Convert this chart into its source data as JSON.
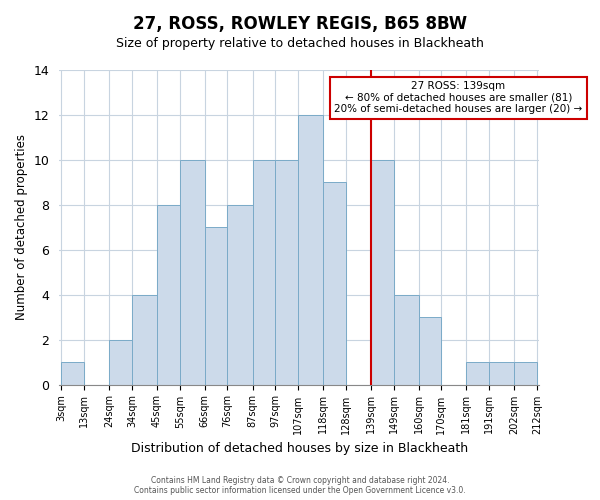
{
  "title": "27, ROSS, ROWLEY REGIS, B65 8BW",
  "subtitle": "Size of property relative to detached houses in Blackheath",
  "xlabel": "Distribution of detached houses by size in Blackheath",
  "ylabel": "Number of detached properties",
  "bin_edges": [
    3,
    13,
    24,
    34,
    45,
    55,
    66,
    76,
    87,
    97,
    107,
    118,
    128,
    139,
    149,
    160,
    170,
    181,
    191,
    202,
    212
  ],
  "bin_labels": [
    "3sqm",
    "13sqm",
    "24sqm",
    "34sqm",
    "45sqm",
    "55sqm",
    "66sqm",
    "76sqm",
    "87sqm",
    "97sqm",
    "107sqm",
    "118sqm",
    "128sqm",
    "139sqm",
    "149sqm",
    "160sqm",
    "170sqm",
    "181sqm",
    "191sqm",
    "202sqm",
    "212sqm"
  ],
  "counts": [
    1,
    0,
    2,
    4,
    8,
    10,
    7,
    8,
    10,
    10,
    12,
    9,
    0,
    10,
    4,
    3,
    0,
    1,
    1,
    1
  ],
  "bar_color": "#ccdaea",
  "bar_edge_color": "#7aaac8",
  "reference_line_x": 139,
  "reference_line_color": "#cc0000",
  "ylim": [
    0,
    14
  ],
  "yticks": [
    0,
    2,
    4,
    6,
    8,
    10,
    12,
    14
  ],
  "annotation_title": "27 ROSS: 139sqm",
  "annotation_line1": "← 80% of detached houses are smaller (81)",
  "annotation_line2": "20% of semi-detached houses are larger (20) →",
  "annotation_box_color": "#ffffff",
  "annotation_box_edge": "#cc0000",
  "footer_line1": "Contains HM Land Registry data © Crown copyright and database right 2024.",
  "footer_line2": "Contains public sector information licensed under the Open Government Licence v3.0.",
  "background_color": "#ffffff",
  "grid_color": "#c8d4e0"
}
